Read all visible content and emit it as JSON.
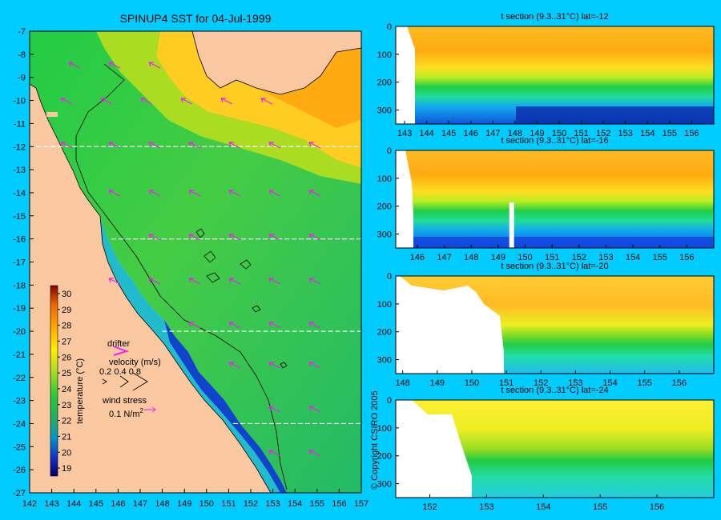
{
  "map": {
    "title": "SPINUP4 SST for 04-Jul-1999",
    "x_ticks": [
      "142",
      "143",
      "144",
      "145",
      "146",
      "147",
      "148",
      "149",
      "150",
      "151",
      "152",
      "153",
      "154",
      "155",
      "156",
      "157"
    ],
    "y_ticks": [
      "-7",
      "-8",
      "-9",
      "-10",
      "-11",
      "-12",
      "-13",
      "-14",
      "-15",
      "-16",
      "-17",
      "-18",
      "-19",
      "-20",
      "-21",
      "-22",
      "-23",
      "-24",
      "-25",
      "-26",
      "-27"
    ],
    "section_lines_lat": [
      -12,
      -16,
      -20,
      -24
    ],
    "colorbar": {
      "label": "temperature (°C)",
      "ticks": [
        "30",
        "29",
        "28",
        "27",
        "26",
        "25",
        "24",
        "23",
        "22",
        "21",
        "20",
        "19"
      ],
      "range": [
        18.5,
        30.5
      ]
    },
    "legend": {
      "drifter": "drifter",
      "velocity": "velocity (m/s)",
      "velocity_values": "0.2  0.4  0.8",
      "wind_stress": "wind stress",
      "wind_value": "0.1 N/m",
      "wind_exp": "2"
    }
  },
  "copyright": "© Copyright CSIRO 2005",
  "chart_data": [
    {
      "type": "heatmap",
      "title": "SPINUP4 SST for 04-Jul-1999",
      "xlim": [
        142,
        157
      ],
      "ylim": [
        -27,
        -7
      ],
      "colorbar_label": "temperature (°C)",
      "colorbar_range": [
        18.5,
        30.5
      ]
    },
    {
      "type": "heatmap",
      "title": "t section (9.3..31°C) lat=-12",
      "x_ticks": [
        "143",
        "144",
        "145",
        "146",
        "147",
        "148",
        "149",
        "150",
        "151",
        "152",
        "153",
        "154",
        "155",
        "156"
      ],
      "xlim": [
        142.6,
        157
      ],
      "y_ticks": [
        "0",
        "100",
        "200",
        "300"
      ],
      "ylim": [
        350,
        0
      ]
    },
    {
      "type": "heatmap",
      "title": "t section (9.3..31°C) lat=-16",
      "x_ticks": [
        "146",
        "147",
        "148",
        "149",
        "150",
        "151",
        "152",
        "153",
        "154",
        "155",
        "156"
      ],
      "xlim": [
        145.2,
        157
      ],
      "y_ticks": [
        "0",
        "100",
        "200",
        "300"
      ],
      "ylim": [
        350,
        0
      ]
    },
    {
      "type": "heatmap",
      "title": "t section (9.3..31°C) lat=-20",
      "x_ticks": [
        "148",
        "149",
        "150",
        "151",
        "152",
        "153",
        "154",
        "155",
        "156"
      ],
      "xlim": [
        147.8,
        157
      ],
      "y_ticks": [
        "0",
        "100",
        "200",
        "300"
      ],
      "ylim": [
        350,
        0
      ]
    },
    {
      "type": "heatmap",
      "title": "t section (9.3..31°C) lat=-24",
      "x_ticks": [
        "152",
        "153",
        "154",
        "155",
        "156"
      ],
      "xlim": [
        151.4,
        157
      ],
      "y_ticks": [
        "0",
        "100",
        "200",
        "300"
      ],
      "ylim": [
        350,
        0
      ]
    }
  ]
}
